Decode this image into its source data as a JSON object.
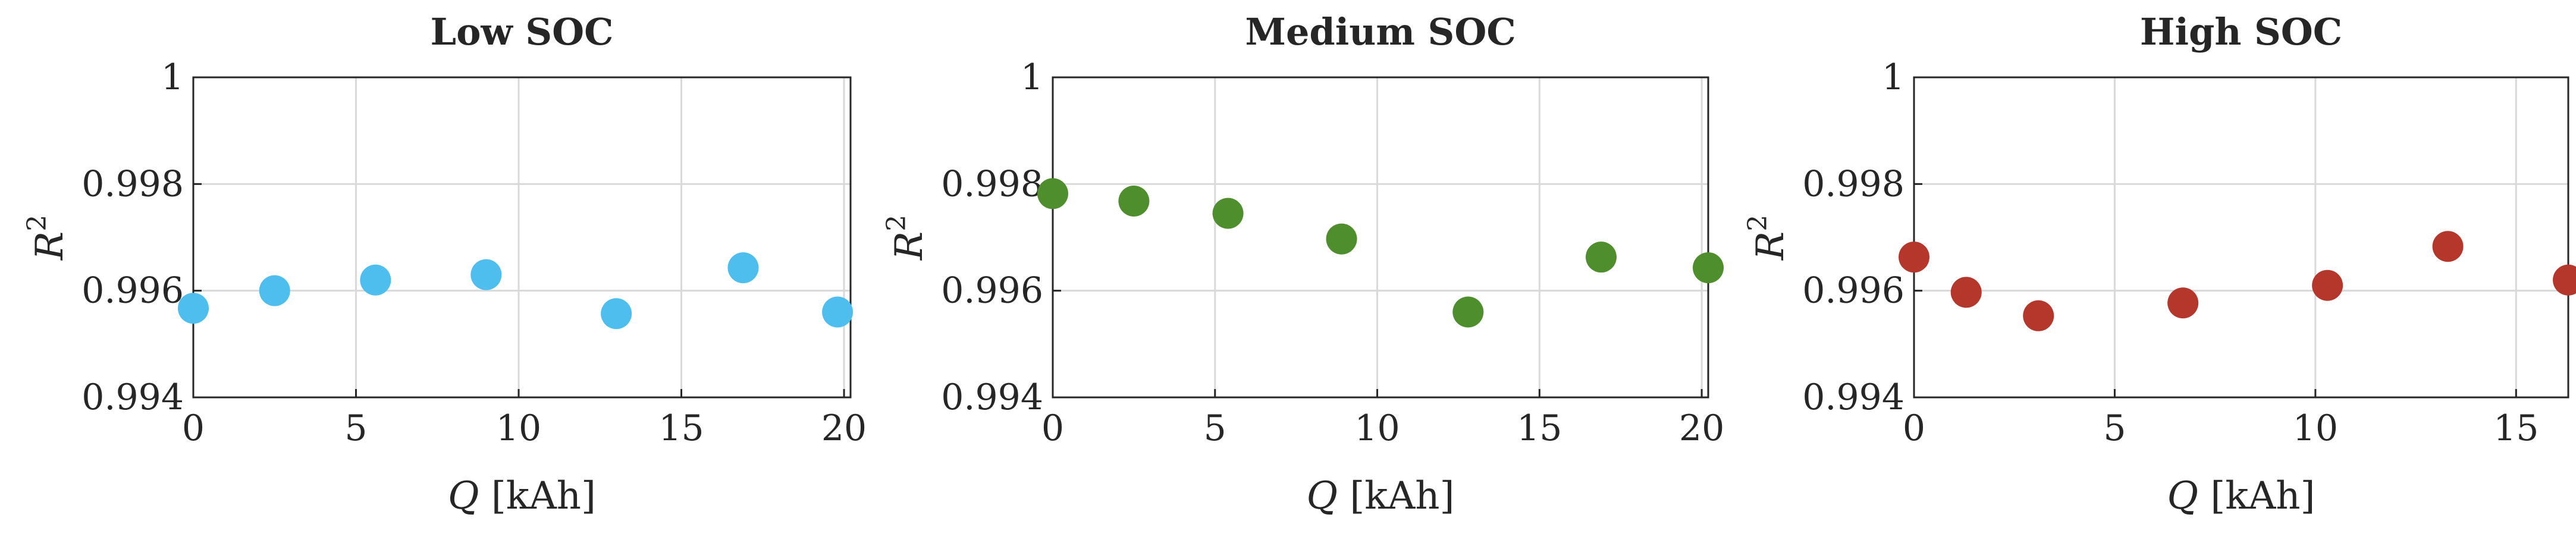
{
  "chart_data": [
    {
      "type": "scatter",
      "title": "Low SOC",
      "xlabel": "Q [kAh]",
      "ylabel": "R",
      "ylabel_superscript": "2",
      "xlim": [
        0,
        20.2
      ],
      "ylim": [
        0.994,
        1
      ],
      "xticks": [
        "0",
        "5",
        "10",
        "15",
        "20"
      ],
      "xtick_values": [
        0,
        5,
        10,
        15,
        20
      ],
      "yticks": [
        "0.994",
        "0.996",
        "0.998",
        "1"
      ],
      "ytick_values": [
        0.994,
        0.996,
        0.998,
        1
      ],
      "grid": true,
      "color": "#4DBEEE",
      "x": [
        0,
        2.5,
        5.6,
        9.0,
        13.0,
        16.9,
        19.8
      ],
      "y": [
        0.99567,
        0.996,
        0.9962,
        0.9963,
        0.99557,
        0.99643,
        0.9956
      ]
    },
    {
      "type": "scatter",
      "title": "Medium SOC",
      "xlabel": "Q [kAh]",
      "ylabel": "R",
      "ylabel_superscript": "2",
      "xlim": [
        0,
        20.2
      ],
      "ylim": [
        0.994,
        1
      ],
      "xticks": [
        "0",
        "5",
        "10",
        "15",
        "20"
      ],
      "xtick_values": [
        0,
        5,
        10,
        15,
        20
      ],
      "yticks": [
        "0.994",
        "0.996",
        "0.998",
        "1"
      ],
      "ytick_values": [
        0.994,
        0.996,
        0.998,
        1
      ],
      "grid": true,
      "color": "#4F8E2D",
      "x": [
        0,
        2.5,
        5.4,
        8.9,
        12.8,
        16.9,
        20.2
      ],
      "y": [
        0.99782,
        0.99768,
        0.99745,
        0.99697,
        0.9956,
        0.99663,
        0.99643
      ]
    },
    {
      "type": "scatter",
      "title": "High SOC",
      "xlabel": "Q [kAh]",
      "ylabel": "R",
      "ylabel_superscript": "2",
      "xlim": [
        0,
        16.3
      ],
      "ylim": [
        0.994,
        1
      ],
      "xticks": [
        "0",
        "5",
        "10",
        "15"
      ],
      "xtick_values": [
        0,
        5,
        10,
        15
      ],
      "yticks": [
        "0.994",
        "0.996",
        "0.998",
        "1"
      ],
      "ytick_values": [
        0.994,
        0.996,
        0.998,
        1
      ],
      "grid": true,
      "color": "#B5372B",
      "x": [
        0,
        1.3,
        3.1,
        6.7,
        10.3,
        13.3,
        16.3
      ],
      "y": [
        0.99663,
        0.99597,
        0.99553,
        0.99577,
        0.9961,
        0.99683,
        0.9962
      ]
    }
  ]
}
